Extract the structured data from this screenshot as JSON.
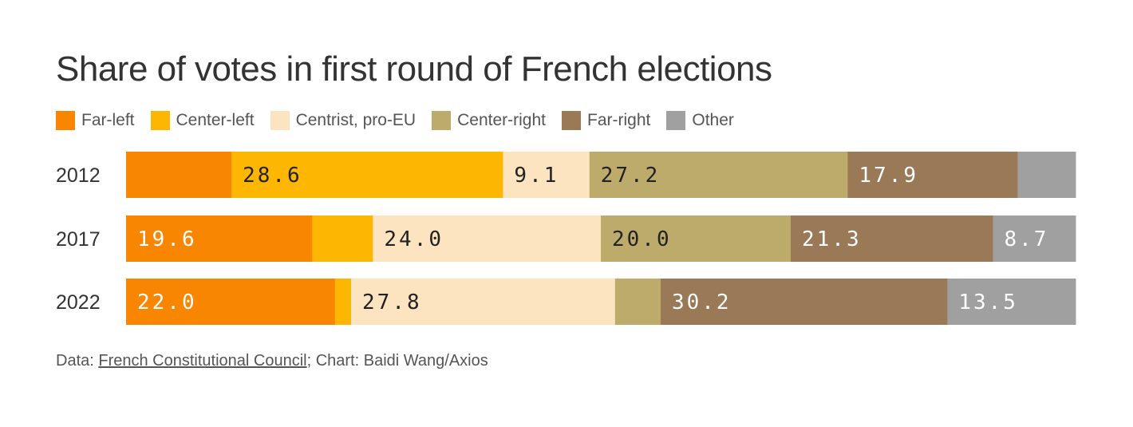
{
  "title": "Share of votes in first round of French elections",
  "legend": [
    {
      "label": "Far-left",
      "color": "#F98600"
    },
    {
      "label": "Center-left",
      "color": "#FDB601"
    },
    {
      "label": "Centrist, pro-EU",
      "color": "#FCE4C0"
    },
    {
      "label": "Center-right",
      "color": "#BDAB6C"
    },
    {
      "label": "Far-right",
      "color": "#9A7957"
    },
    {
      "label": "Other",
      "color": "#A0A0A0"
    }
  ],
  "source": {
    "prefix": "Data: ",
    "link": "French Constitutional Council",
    "suffix": "; Chart: Baidi Wang/Axios"
  },
  "chart_data": {
    "type": "bar",
    "orientation": "horizontal-stacked-100",
    "title": "Share of votes in first round of French elections",
    "categories": [
      "2012",
      "2017",
      "2022"
    ],
    "series": [
      {
        "name": "Far-left",
        "color": "#F98600",
        "values": [
          11.1,
          19.6,
          22.0
        ],
        "labels": [
          "",
          "19.6",
          "22.0"
        ],
        "label_color": "#ffffff"
      },
      {
        "name": "Center-left",
        "color": "#FDB601",
        "values": [
          28.6,
          6.4,
          1.7
        ],
        "labels": [
          "28.6",
          "",
          ""
        ],
        "label_color": "#222222"
      },
      {
        "name": "Centrist, pro-EU",
        "color": "#FCE4C0",
        "values": [
          9.1,
          24.0,
          27.8
        ],
        "labels": [
          "9.1",
          "24.0",
          "27.8"
        ],
        "label_color": "#222222"
      },
      {
        "name": "Center-right",
        "color": "#BDAB6C",
        "values": [
          27.2,
          20.0,
          4.8
        ],
        "labels": [
          "27.2",
          "20.0",
          ""
        ],
        "label_color": "#222222"
      },
      {
        "name": "Far-right",
        "color": "#9A7957",
        "values": [
          17.9,
          21.3,
          30.2
        ],
        "labels": [
          "17.9",
          "21.3",
          "30.2"
        ],
        "label_color": "#ffffff"
      },
      {
        "name": "Other",
        "color": "#A0A0A0",
        "values": [
          6.1,
          8.7,
          13.5
        ],
        "labels": [
          "",
          "8.7",
          "13.5"
        ],
        "label_color": "#ffffff"
      }
    ],
    "xlim": [
      0,
      100
    ]
  }
}
